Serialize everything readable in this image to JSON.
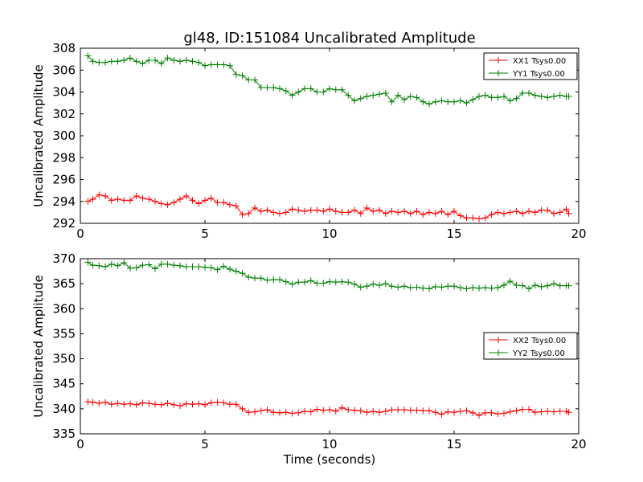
{
  "figure_title": "gl48, ID:151084 Uncalibrated Amplitude",
  "colors": {
    "xx": "#ff0000",
    "yy": "#008000",
    "axes": "#000000"
  },
  "chart_data": [
    {
      "type": "line",
      "title": "gl48, ID:151084 Uncalibrated Amplitude",
      "xlabel": "",
      "ylabel": "Uncalibrated Amplitude",
      "xlim": [
        0,
        20
      ],
      "ylim": [
        292,
        308
      ],
      "xticks": [
        0,
        5,
        10,
        15,
        20
      ],
      "yticks": [
        292,
        294,
        296,
        298,
        300,
        302,
        304,
        306,
        308
      ],
      "legend_position": "top-right",
      "grid": false,
      "series": [
        {
          "name": "XX1 Tsys0.00",
          "color": "#ff0000",
          "x": [
            0.3,
            0.5,
            0.75,
            1.0,
            1.25,
            1.5,
            1.75,
            2.0,
            2.25,
            2.5,
            2.75,
            3.0,
            3.25,
            3.5,
            3.75,
            4.0,
            4.25,
            4.5,
            4.75,
            5.0,
            5.25,
            5.5,
            5.75,
            6.0,
            6.25,
            6.5,
            6.75,
            7.0,
            7.25,
            7.5,
            7.75,
            8.0,
            8.25,
            8.5,
            8.75,
            9.0,
            9.25,
            9.5,
            9.75,
            10.0,
            10.25,
            10.5,
            10.75,
            11.0,
            11.25,
            11.5,
            11.75,
            12.0,
            12.25,
            12.5,
            12.75,
            13.0,
            13.25,
            13.5,
            13.75,
            14.0,
            14.25,
            14.5,
            14.75,
            15.0,
            15.25,
            15.5,
            15.75,
            16.0,
            16.25,
            16.5,
            16.75,
            17.0,
            17.25,
            17.5,
            17.75,
            18.0,
            18.25,
            18.5,
            18.75,
            19.0,
            19.25,
            19.5,
            19.6
          ],
          "values": [
            294.0,
            294.2,
            294.6,
            294.5,
            294.1,
            294.2,
            294.1,
            294.1,
            294.5,
            294.3,
            294.2,
            294.0,
            293.8,
            293.7,
            293.9,
            294.2,
            294.5,
            294.1,
            293.8,
            294.1,
            294.3,
            293.9,
            293.9,
            293.7,
            293.6,
            292.8,
            292.9,
            293.4,
            293.1,
            293.2,
            293.0,
            292.9,
            293.0,
            293.3,
            293.2,
            293.1,
            293.2,
            293.2,
            293.1,
            293.3,
            293.1,
            293.0,
            293.0,
            293.2,
            292.9,
            293.4,
            293.1,
            293.2,
            292.9,
            293.1,
            293.0,
            293.1,
            292.9,
            293.1,
            292.8,
            293.0,
            292.9,
            293.1,
            292.8,
            293.1,
            292.7,
            292.5,
            292.5,
            292.4,
            292.5,
            292.8,
            293.0,
            292.9,
            293.0,
            293.1,
            292.9,
            293.1,
            293.0,
            293.2,
            293.2,
            292.9,
            293.0,
            293.3,
            292.9
          ]
        },
        {
          "name": "YY1 Tsys0.00",
          "color": "#008000",
          "x": [
            0.3,
            0.5,
            0.75,
            1.0,
            1.25,
            1.5,
            1.75,
            2.0,
            2.25,
            2.5,
            2.75,
            3.0,
            3.25,
            3.5,
            3.75,
            4.0,
            4.25,
            4.5,
            4.75,
            5.0,
            5.25,
            5.5,
            5.75,
            6.0,
            6.25,
            6.5,
            6.75,
            7.0,
            7.25,
            7.5,
            7.75,
            8.0,
            8.25,
            8.5,
            8.75,
            9.0,
            9.25,
            9.5,
            9.75,
            10.0,
            10.25,
            10.5,
            10.75,
            11.0,
            11.25,
            11.5,
            11.75,
            12.0,
            12.25,
            12.5,
            12.75,
            13.0,
            13.25,
            13.5,
            13.75,
            14.0,
            14.25,
            14.5,
            14.75,
            15.0,
            15.25,
            15.5,
            15.75,
            16.0,
            16.25,
            16.5,
            16.75,
            17.0,
            17.25,
            17.5,
            17.75,
            18.0,
            18.25,
            18.5,
            18.75,
            19.0,
            19.25,
            19.5,
            19.6
          ],
          "values": [
            307.3,
            306.8,
            306.7,
            306.7,
            306.8,
            306.8,
            306.9,
            307.1,
            306.8,
            306.6,
            306.9,
            306.9,
            306.6,
            307.1,
            306.9,
            306.8,
            306.9,
            306.8,
            306.7,
            306.4,
            306.5,
            306.5,
            306.5,
            306.4,
            305.6,
            305.5,
            305.1,
            305.1,
            304.4,
            304.4,
            304.4,
            304.3,
            304.1,
            303.7,
            304.0,
            304.3,
            304.3,
            304.0,
            304.0,
            304.3,
            304.2,
            304.2,
            303.7,
            303.2,
            303.4,
            303.6,
            303.7,
            303.8,
            303.9,
            303.1,
            303.7,
            303.3,
            303.6,
            303.5,
            303.1,
            302.9,
            303.1,
            303.2,
            303.1,
            303.1,
            303.2,
            303.0,
            303.3,
            303.6,
            303.7,
            303.5,
            303.5,
            303.6,
            303.2,
            303.4,
            303.9,
            303.9,
            303.7,
            303.6,
            303.5,
            303.6,
            303.7,
            303.6,
            303.6
          ]
        }
      ]
    },
    {
      "type": "line",
      "title": "",
      "xlabel": "Time (seconds)",
      "ylabel": "Uncalibrated Amplitude",
      "xlim": [
        0,
        20
      ],
      "ylim": [
        335,
        370
      ],
      "xticks": [
        0,
        5,
        10,
        15,
        20
      ],
      "yticks": [
        335,
        340,
        345,
        350,
        355,
        360,
        365,
        370
      ],
      "legend_position": "center-right",
      "grid": false,
      "series": [
        {
          "name": "XX2 Tsys0.00",
          "color": "#ff0000",
          "x": [
            0.3,
            0.5,
            0.75,
            1.0,
            1.25,
            1.5,
            1.75,
            2.0,
            2.25,
            2.5,
            2.75,
            3.0,
            3.25,
            3.5,
            3.75,
            4.0,
            4.25,
            4.5,
            4.75,
            5.0,
            5.25,
            5.5,
            5.75,
            6.0,
            6.25,
            6.5,
            6.75,
            7.0,
            7.25,
            7.5,
            7.75,
            8.0,
            8.25,
            8.5,
            8.75,
            9.0,
            9.25,
            9.5,
            9.75,
            10.0,
            10.25,
            10.5,
            10.75,
            11.0,
            11.25,
            11.5,
            11.75,
            12.0,
            12.25,
            12.5,
            12.75,
            13.0,
            13.25,
            13.5,
            13.75,
            14.0,
            14.25,
            14.5,
            14.75,
            15.0,
            15.25,
            15.5,
            15.75,
            16.0,
            16.25,
            16.5,
            16.75,
            17.0,
            17.25,
            17.5,
            17.75,
            18.0,
            18.25,
            18.5,
            18.75,
            19.0,
            19.25,
            19.5,
            19.6
          ],
          "values": [
            341.4,
            341.3,
            341.1,
            341.3,
            340.9,
            341.1,
            340.9,
            341.0,
            340.8,
            341.2,
            341.1,
            340.9,
            340.8,
            341.1,
            340.8,
            340.6,
            341.0,
            340.9,
            341.0,
            340.8,
            341.2,
            341.3,
            341.2,
            340.9,
            340.9,
            340.0,
            339.3,
            339.4,
            339.6,
            339.8,
            339.3,
            339.2,
            339.3,
            339.1,
            339.2,
            339.5,
            339.4,
            339.9,
            339.7,
            339.8,
            339.5,
            340.2,
            339.8,
            339.7,
            339.6,
            339.3,
            339.5,
            339.3,
            339.5,
            339.8,
            339.8,
            339.8,
            339.7,
            339.7,
            339.6,
            339.6,
            339.3,
            338.9,
            339.4,
            339.3,
            339.5,
            339.6,
            339.2,
            338.7,
            339.2,
            339.2,
            339.0,
            339.1,
            339.4,
            339.6,
            339.9,
            339.9,
            339.3,
            339.4,
            339.5,
            339.4,
            339.5,
            339.5,
            339.3
          ]
        },
        {
          "name": "YY2 Tsys0.00",
          "color": "#008000",
          "x": [
            0.3,
            0.5,
            0.75,
            1.0,
            1.25,
            1.5,
            1.75,
            2.0,
            2.25,
            2.5,
            2.75,
            3.0,
            3.25,
            3.5,
            3.75,
            4.0,
            4.25,
            4.5,
            4.75,
            5.0,
            5.25,
            5.5,
            5.75,
            6.0,
            6.25,
            6.5,
            6.75,
            7.0,
            7.25,
            7.5,
            7.75,
            8.0,
            8.25,
            8.5,
            8.75,
            9.0,
            9.25,
            9.5,
            9.75,
            10.0,
            10.25,
            10.5,
            10.75,
            11.0,
            11.25,
            11.5,
            11.75,
            12.0,
            12.25,
            12.5,
            12.75,
            13.0,
            13.25,
            13.5,
            13.75,
            14.0,
            14.25,
            14.5,
            14.75,
            15.0,
            15.25,
            15.5,
            15.75,
            16.0,
            16.25,
            16.5,
            16.75,
            17.0,
            17.25,
            17.5,
            17.75,
            18.0,
            18.25,
            18.5,
            18.75,
            19.0,
            19.25,
            19.5,
            19.6
          ],
          "values": [
            369.3,
            368.7,
            368.6,
            368.4,
            368.9,
            368.6,
            369.2,
            368.1,
            368.2,
            368.7,
            368.8,
            368.0,
            368.9,
            368.9,
            368.7,
            368.6,
            368.4,
            368.4,
            368.4,
            368.3,
            368.2,
            367.8,
            368.5,
            367.9,
            367.5,
            367.1,
            366.3,
            366.1,
            366.1,
            365.7,
            365.8,
            365.8,
            365.4,
            364.9,
            365.3,
            365.3,
            365.6,
            365.1,
            365.1,
            365.4,
            365.3,
            365.4,
            365.3,
            364.9,
            364.3,
            364.5,
            364.9,
            364.7,
            365.0,
            364.5,
            364.3,
            364.5,
            364.2,
            364.3,
            364.1,
            364.0,
            364.4,
            364.3,
            364.5,
            364.5,
            364.2,
            364.0,
            364.2,
            364.1,
            364.2,
            364.1,
            364.2,
            364.7,
            365.5,
            364.7,
            364.6,
            364.0,
            364.7,
            364.4,
            364.6,
            365.0,
            364.6,
            364.6,
            364.6
          ]
        }
      ]
    }
  ]
}
